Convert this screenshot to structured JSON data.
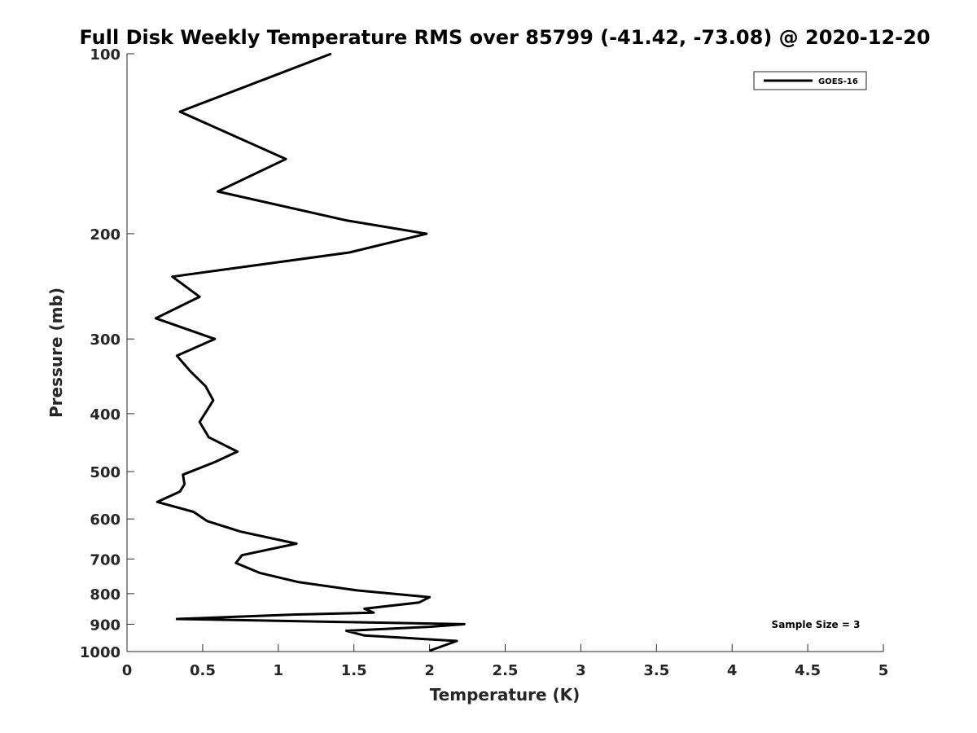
{
  "chart_data": {
    "type": "line",
    "title": "Full Disk Weekly Temperature RMS over 85799 (-41.42, -73.08) @ 2020-12-20",
    "xlabel": "Temperature (K)",
    "ylabel": "Pressure (mb)",
    "xlim": [
      0,
      5
    ],
    "ylim": [
      100,
      1000
    ],
    "y_scale": "log",
    "y_reversed": true,
    "x_ticks": [
      "0",
      "0.5",
      "1",
      "1.5",
      "2",
      "2.5",
      "3",
      "3.5",
      "4",
      "4.5",
      "5"
    ],
    "y_ticks": [
      "100",
      "200",
      "300",
      "400",
      "500",
      "600",
      "700",
      "800",
      "900",
      "1000"
    ],
    "grid": false,
    "legend_position": "top-right",
    "annotation": "Sample Size = 3",
    "series": [
      {
        "name": "GOES-16",
        "color": "#000000",
        "points": [
          [
            1.35,
            100
          ],
          [
            0.35,
            125
          ],
          [
            1.05,
            150
          ],
          [
            0.6,
            170
          ],
          [
            1.45,
            190
          ],
          [
            1.98,
            200
          ],
          [
            1.47,
            215
          ],
          [
            0.3,
            236
          ],
          [
            0.48,
            255
          ],
          [
            0.19,
            277
          ],
          [
            0.58,
            300
          ],
          [
            0.33,
            320
          ],
          [
            0.42,
            340
          ],
          [
            0.52,
            360
          ],
          [
            0.57,
            380
          ],
          [
            0.48,
            413
          ],
          [
            0.54,
            438
          ],
          [
            0.73,
            463
          ],
          [
            0.58,
            482
          ],
          [
            0.37,
            506
          ],
          [
            0.38,
            525
          ],
          [
            0.35,
            540
          ],
          [
            0.2,
            562
          ],
          [
            0.44,
            584
          ],
          [
            0.53,
            605
          ],
          [
            0.75,
            630
          ],
          [
            1.12,
            660
          ],
          [
            0.76,
            690
          ],
          [
            0.72,
            711
          ],
          [
            0.88,
            739
          ],
          [
            1.13,
            765
          ],
          [
            1.52,
            790
          ],
          [
            2.0,
            811
          ],
          [
            1.93,
            828
          ],
          [
            1.57,
            848
          ],
          [
            1.63,
            861
          ],
          [
            1.12,
            867
          ],
          [
            0.33,
            882
          ],
          [
            2.23,
            900
          ],
          [
            2.0,
            909
          ],
          [
            1.45,
            923
          ],
          [
            1.57,
            940
          ],
          [
            2.18,
            960
          ],
          [
            2.0,
            997
          ]
        ]
      }
    ]
  }
}
